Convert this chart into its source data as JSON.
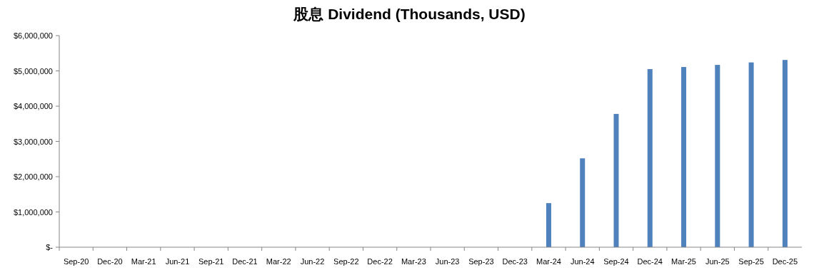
{
  "chart_data": {
    "type": "bar",
    "title": "股息 Dividend (Thousands, USD)",
    "categories": [
      "Sep-20",
      "Dec-20",
      "Mar-21",
      "Jun-21",
      "Sep-21",
      "Dec-21",
      "Mar-22",
      "Jun-22",
      "Sep-22",
      "Dec-22",
      "Mar-23",
      "Jun-23",
      "Sep-23",
      "Dec-23",
      "Mar-24",
      "Jun-24",
      "Sep-24",
      "Dec-24",
      "Mar-25",
      "Jun-25",
      "Sep-25",
      "Dec-25"
    ],
    "values": [
      0,
      0,
      0,
      0,
      0,
      0,
      0,
      0,
      0,
      0,
      0,
      0,
      0,
      0,
      1250000,
      2520000,
      3780000,
      5050000,
      5110000,
      5170000,
      5240000,
      5310000
    ],
    "color": "#4f81bd",
    "ylim": [
      0,
      6000000
    ],
    "yticks": [
      {
        "value": 0,
        "label": "$-"
      },
      {
        "value": 1000000,
        "label": "$1,000,000"
      },
      {
        "value": 2000000,
        "label": "$2,000,000"
      },
      {
        "value": 3000000,
        "label": "$3,000,000"
      },
      {
        "value": 4000000,
        "label": "$4,000,000"
      },
      {
        "value": 5000000,
        "label": "$5,000,000"
      },
      {
        "value": 6000000,
        "label": "$6,000,000"
      }
    ],
    "grid": false
  }
}
